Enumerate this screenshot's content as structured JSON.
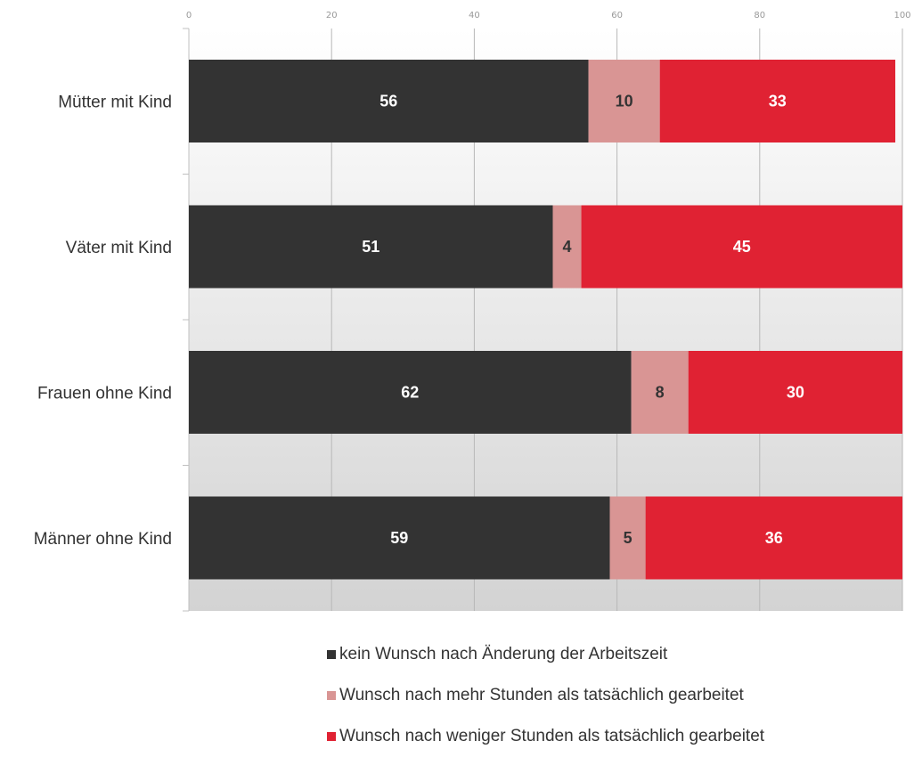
{
  "chart_data": {
    "type": "bar",
    "orientation": "horizontal",
    "stacked": true,
    "categories": [
      "Mütter mit Kind",
      "Väter mit Kind",
      "Frauen ohne Kind",
      "Männer ohne Kind"
    ],
    "series": [
      {
        "name": "kein Wunsch nach Änderung der Arbeitszeit",
        "values": [
          56,
          51,
          62,
          59
        ],
        "color": "#333333",
        "label_color": "#ffffff"
      },
      {
        "name": "Wunsch nach mehr Stunden als tatsächlich gearbeitet",
        "values": [
          10,
          4,
          8,
          5
        ],
        "color": "#d99594",
        "label_color": "#333333"
      },
      {
        "name": "Wunsch nach weniger Stunden als tatsächlich gearbeitet",
        "values": [
          33,
          45,
          30,
          36
        ],
        "color": "#e02233",
        "label_color": "#ffffff"
      }
    ],
    "xlim": [
      0,
      100
    ],
    "x_ticks": [
      0,
      20,
      40,
      60,
      80,
      100
    ],
    "grid": true,
    "legend_position": "bottom-center",
    "background_gradient": [
      "#ffffff",
      "#d3d3d3"
    ]
  }
}
